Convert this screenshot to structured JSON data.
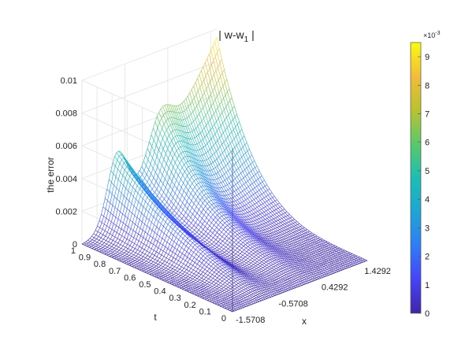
{
  "chart_data": {
    "type": "surface-mesh",
    "title": "| w-w",
    "title_subscript": "1",
    "title_suffix": " |",
    "xlabel": "x",
    "ylabel": "t",
    "zlabel": "the error",
    "x_ticks": [
      "-1.5708",
      "-0.5708",
      "0.4292",
      "1.4292"
    ],
    "x_tick_values": [
      -1.5708,
      -0.5708,
      0.4292,
      1.4292
    ],
    "xlim": [
      -1.5708,
      1.5708
    ],
    "t_ticks": [
      "0",
      "0.1",
      "0.2",
      "0.3",
      "0.4",
      "0.5",
      "0.6",
      "0.7",
      "0.8",
      "0.9",
      "1"
    ],
    "t_tick_values": [
      0,
      0.1,
      0.2,
      0.3,
      0.4,
      0.5,
      0.6,
      0.7,
      0.8,
      0.9,
      1
    ],
    "tlim": [
      0,
      1
    ],
    "z_ticks": [
      "0",
      "0.002",
      "0.004",
      "0.006",
      "0.008",
      "0.01"
    ],
    "z_tick_values": [
      0,
      0.002,
      0.004,
      0.006,
      0.008,
      0.01
    ],
    "zlim": [
      0,
      0.01
    ],
    "colorbar": {
      "exponent_label": "×10",
      "exponent_power": "-3",
      "ticks": [
        "0",
        "1",
        "2",
        "3",
        "4",
        "5",
        "6",
        "7",
        "8",
        "9"
      ],
      "tick_values": [
        0,
        1,
        2,
        3,
        4,
        5,
        6,
        7,
        8,
        9
      ],
      "range": [
        0,
        9.5
      ]
    },
    "colormap": [
      "#3e26a8",
      "#4743f8",
      "#2f7df6",
      "#1fa5d5",
      "#1bbeb4",
      "#59c96a",
      "#b9c231",
      "#f3bc3a",
      "#f9fb0e"
    ],
    "surface_features": {
      "peak_max_error": 0.0095,
      "peak_at_x": 1.5708,
      "peak_at_t": 1,
      "ridge1_max": 0.0037,
      "ridge2_max": 0.0024,
      "grid": "on"
    }
  }
}
